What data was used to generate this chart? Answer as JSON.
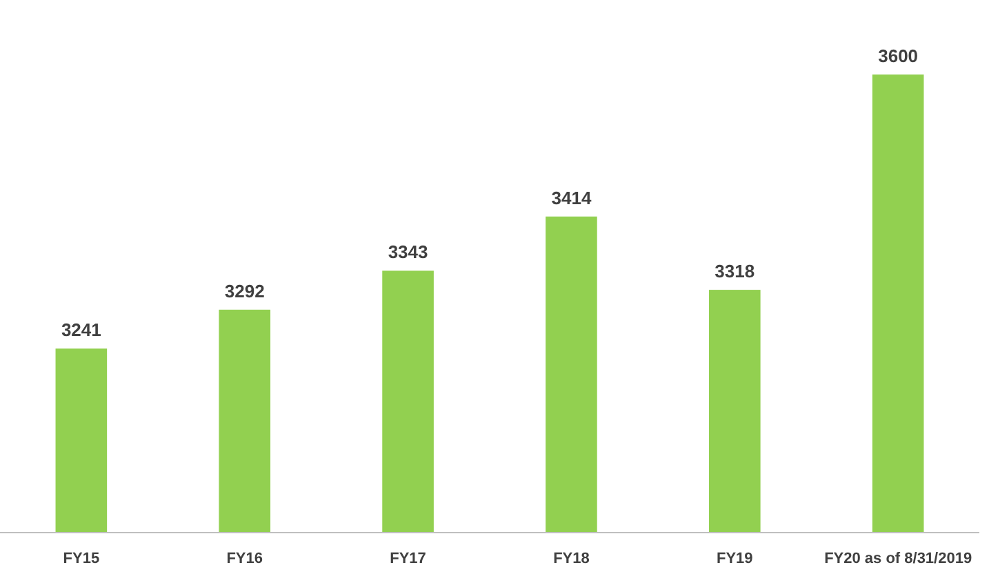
{
  "chart_data": {
    "type": "bar",
    "categories": [
      "FY15",
      "FY16",
      "FY17",
      "FY18",
      "FY19",
      "FY20 as of 8/31/2019"
    ],
    "values": [
      3241,
      3292,
      3343,
      3414,
      3318,
      3600
    ],
    "color": "#92d050",
    "ylim": [
      3000,
      3600
    ],
    "data_labels": true
  }
}
